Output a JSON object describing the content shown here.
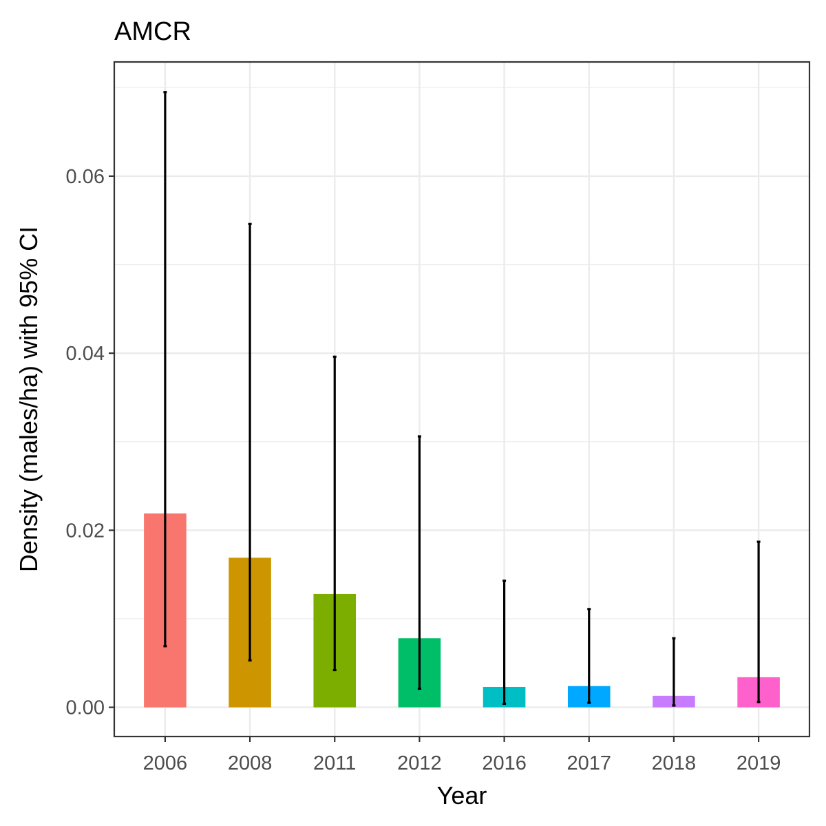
{
  "chart_data": {
    "type": "bar",
    "title": "AMCR",
    "xlabel": "Year",
    "ylabel": "Density (males/ha) with 95% CI",
    "categories": [
      "2006",
      "2008",
      "2011",
      "2012",
      "2016",
      "2017",
      "2018",
      "2019"
    ],
    "values": [
      0.0219,
      0.0169,
      0.0128,
      0.0078,
      0.0023,
      0.0024,
      0.0013,
      0.0034
    ],
    "ci_lower": [
      0.0069,
      0.0053,
      0.0042,
      0.0021,
      0.0004,
      0.0005,
      0.0002,
      0.0006
    ],
    "ci_upper": [
      0.0695,
      0.0546,
      0.0396,
      0.0306,
      0.0143,
      0.0111,
      0.0078,
      0.0187
    ],
    "colors": [
      "#F8766D",
      "#CD9600",
      "#7CAE00",
      "#00BE67",
      "#00BFC4",
      "#00A9FF",
      "#C77CFF",
      "#FF61CC"
    ],
    "yticks": [
      0.0,
      0.02,
      0.04,
      0.06
    ],
    "ytick_labels": [
      "0.00",
      "0.02",
      "0.04",
      "0.06"
    ],
    "ylim": [
      -0.0033,
      0.0729
    ],
    "grid": true,
    "legend": "none"
  }
}
